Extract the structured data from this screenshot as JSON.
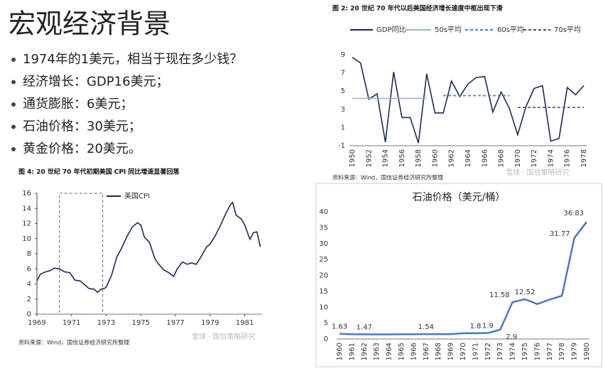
{
  "slide": {
    "title": "宏观经济背景",
    "bullets": [
      "1974年的1美元，相当于现在多少钱？",
      "经济增长：GDP16美元；",
      "通货膨胀：6美元；",
      "石油价格：30美元；",
      "黄金价格：20美元。"
    ]
  },
  "chart_data": [
    {
      "type": "line",
      "title": "图 2: 20 世纪 70 年代以后美国经济增长速度中枢出现下滑",
      "categories": [
        "1950",
        null,
        "1952",
        null,
        "1954",
        null,
        "1956",
        null,
        "1958",
        null,
        "1960",
        null,
        "1962",
        null,
        "1964",
        null,
        "1966",
        null,
        "1968",
        null,
        "1970",
        null,
        "1972",
        null,
        "1974",
        null,
        "1976",
        null,
        "1978"
      ],
      "series": [
        {
          "name": "GDP同比",
          "color": "#1c2b57",
          "dash": false,
          "values": [
            8.7,
            8.1,
            4.1,
            4.7,
            -0.6,
            7.1,
            2.1,
            2.1,
            -0.7,
            6.9,
            2.6,
            2.6,
            6.1,
            4.4,
            5.8,
            6.5,
            6.6,
            2.7,
            4.9,
            3.1,
            0.2,
            3.3,
            5.3,
            5.6,
            -0.5,
            -0.2,
            5.4,
            4.6,
            5.6
          ]
        },
        {
          "name": "50s平均",
          "color": "#9fb4c9",
          "dash": false,
          "values": [
            4.2,
            4.2,
            4.2,
            4.2,
            4.2,
            4.2,
            4.2,
            4.2,
            4.2,
            4.2,
            null,
            null,
            null,
            null,
            null,
            null,
            null,
            null,
            null,
            null,
            null,
            null,
            null,
            null,
            null,
            null,
            null,
            null,
            null
          ]
        },
        {
          "name": "60s平均",
          "color": "#3d7fd0",
          "dash": true,
          "values": [
            null,
            null,
            null,
            null,
            null,
            null,
            null,
            null,
            null,
            null,
            null,
            4.5,
            4.5,
            4.5,
            4.5,
            4.5,
            4.5,
            4.5,
            4.5,
            4.5,
            null,
            null,
            null,
            null,
            null,
            null,
            null,
            null,
            null
          ]
        },
        {
          "name": "70s平均",
          "color": "#555555",
          "dash": true,
          "values": [
            null,
            null,
            null,
            null,
            null,
            null,
            null,
            null,
            null,
            null,
            null,
            null,
            null,
            null,
            null,
            null,
            null,
            null,
            null,
            null,
            3.2,
            3.2,
            3.2,
            3.2,
            3.2,
            3.2,
            3.2,
            3.2,
            3.2
          ]
        }
      ],
      "ylim": [
        -1,
        9
      ],
      "yticks": [
        -1,
        1,
        3,
        5,
        7,
        9
      ],
      "source": "资料来源：Wind，国信证券经济研究所整理",
      "watermark": "雪球 · 国信策略研究"
    },
    {
      "type": "line",
      "title": "图 4: 20 世纪 70 年代初期美国 CPI 同比增速显著回落",
      "x": [
        1969.0,
        1969.2,
        1969.5,
        1969.8,
        1970.0,
        1970.3,
        1970.6,
        1970.9,
        1971.2,
        1971.5,
        1971.8,
        1972.0,
        1972.3,
        1972.5,
        1972.7,
        1972.9,
        1973.0,
        1973.3,
        1973.6,
        1973.9,
        1974.2,
        1974.5,
        1974.8,
        1975.0,
        1975.2,
        1975.5,
        1975.8,
        1976.0,
        1976.3,
        1976.6,
        1976.9,
        1977.1,
        1977.4,
        1977.7,
        1977.9,
        1978.2,
        1978.5,
        1978.8,
        1979.0,
        1979.3,
        1979.6,
        1979.9,
        1980.2,
        1980.3,
        1980.5,
        1980.8,
        1981.0,
        1981.3,
        1981.5,
        1981.7,
        1981.9
      ],
      "series": [
        {
          "name": "美国CPI",
          "color": "#1c2b57",
          "dash": false,
          "values": [
            4.4,
            5.3,
            5.6,
            5.8,
            6.1,
            6.0,
            5.6,
            5.5,
            4.5,
            4.4,
            3.8,
            3.4,
            3.3,
            2.9,
            3.3,
            3.4,
            3.6,
            5.1,
            7.5,
            8.8,
            10.3,
            11.5,
            12.1,
            11.8,
            10.2,
            9.5,
            7.4,
            6.7,
            5.9,
            5.5,
            5.0,
            6.0,
            6.9,
            6.6,
            6.8,
            6.6,
            7.7,
            8.9,
            9.3,
            10.4,
            11.8,
            13.3,
            14.6,
            14.8,
            13.1,
            12.6,
            11.8,
            9.9,
            10.8,
            10.9,
            8.9
          ]
        }
      ],
      "xlim": [
        1969,
        1982
      ],
      "xticks": [
        1969,
        1971,
        1973,
        1975,
        1977,
        1979,
        1981
      ],
      "ylim": [
        0,
        16
      ],
      "yticks": [
        0,
        2,
        4,
        6,
        8,
        10,
        12,
        14,
        16
      ],
      "highlight_x": [
        1970.3,
        1972.8
      ],
      "source": "资料来源：Wind，国信证券经济研究所整理",
      "watermark": "雪球 · 国信策略研究"
    },
    {
      "type": "line",
      "title": "石油价格（美元/桶）",
      "categories": [
        "1960",
        "1961",
        "1962",
        "1963",
        "1964",
        "1965",
        "1966",
        "1967",
        "1968",
        "1969",
        "1970",
        "1971",
        "1972",
        "1973",
        "1974",
        "1975",
        "1976",
        "1977",
        "1978",
        "1979",
        "1980"
      ],
      "series": [
        {
          "name": "石油价格",
          "color": "#4a78c0",
          "dash": false,
          "values": [
            1.63,
            1.5,
            1.47,
            1.45,
            1.45,
            1.5,
            1.52,
            1.54,
            1.54,
            1.55,
            1.8,
            1.8,
            1.9,
            2.9,
            11.58,
            12.52,
            11.0,
            12.4,
            13.6,
            31.77,
            36.83
          ],
          "value_labels": [
            "1.63",
            null,
            "1.47",
            null,
            null,
            null,
            null,
            "1.54",
            null,
            null,
            null,
            "1.8",
            "1.9",
            "2.9",
            "11.58",
            "12.52",
            null,
            null,
            null,
            "31.77",
            "36.83"
          ]
        }
      ],
      "ylim": [
        0,
        40
      ],
      "yticks": [
        0,
        5,
        10,
        15,
        20,
        25,
        30,
        35,
        40
      ]
    }
  ]
}
